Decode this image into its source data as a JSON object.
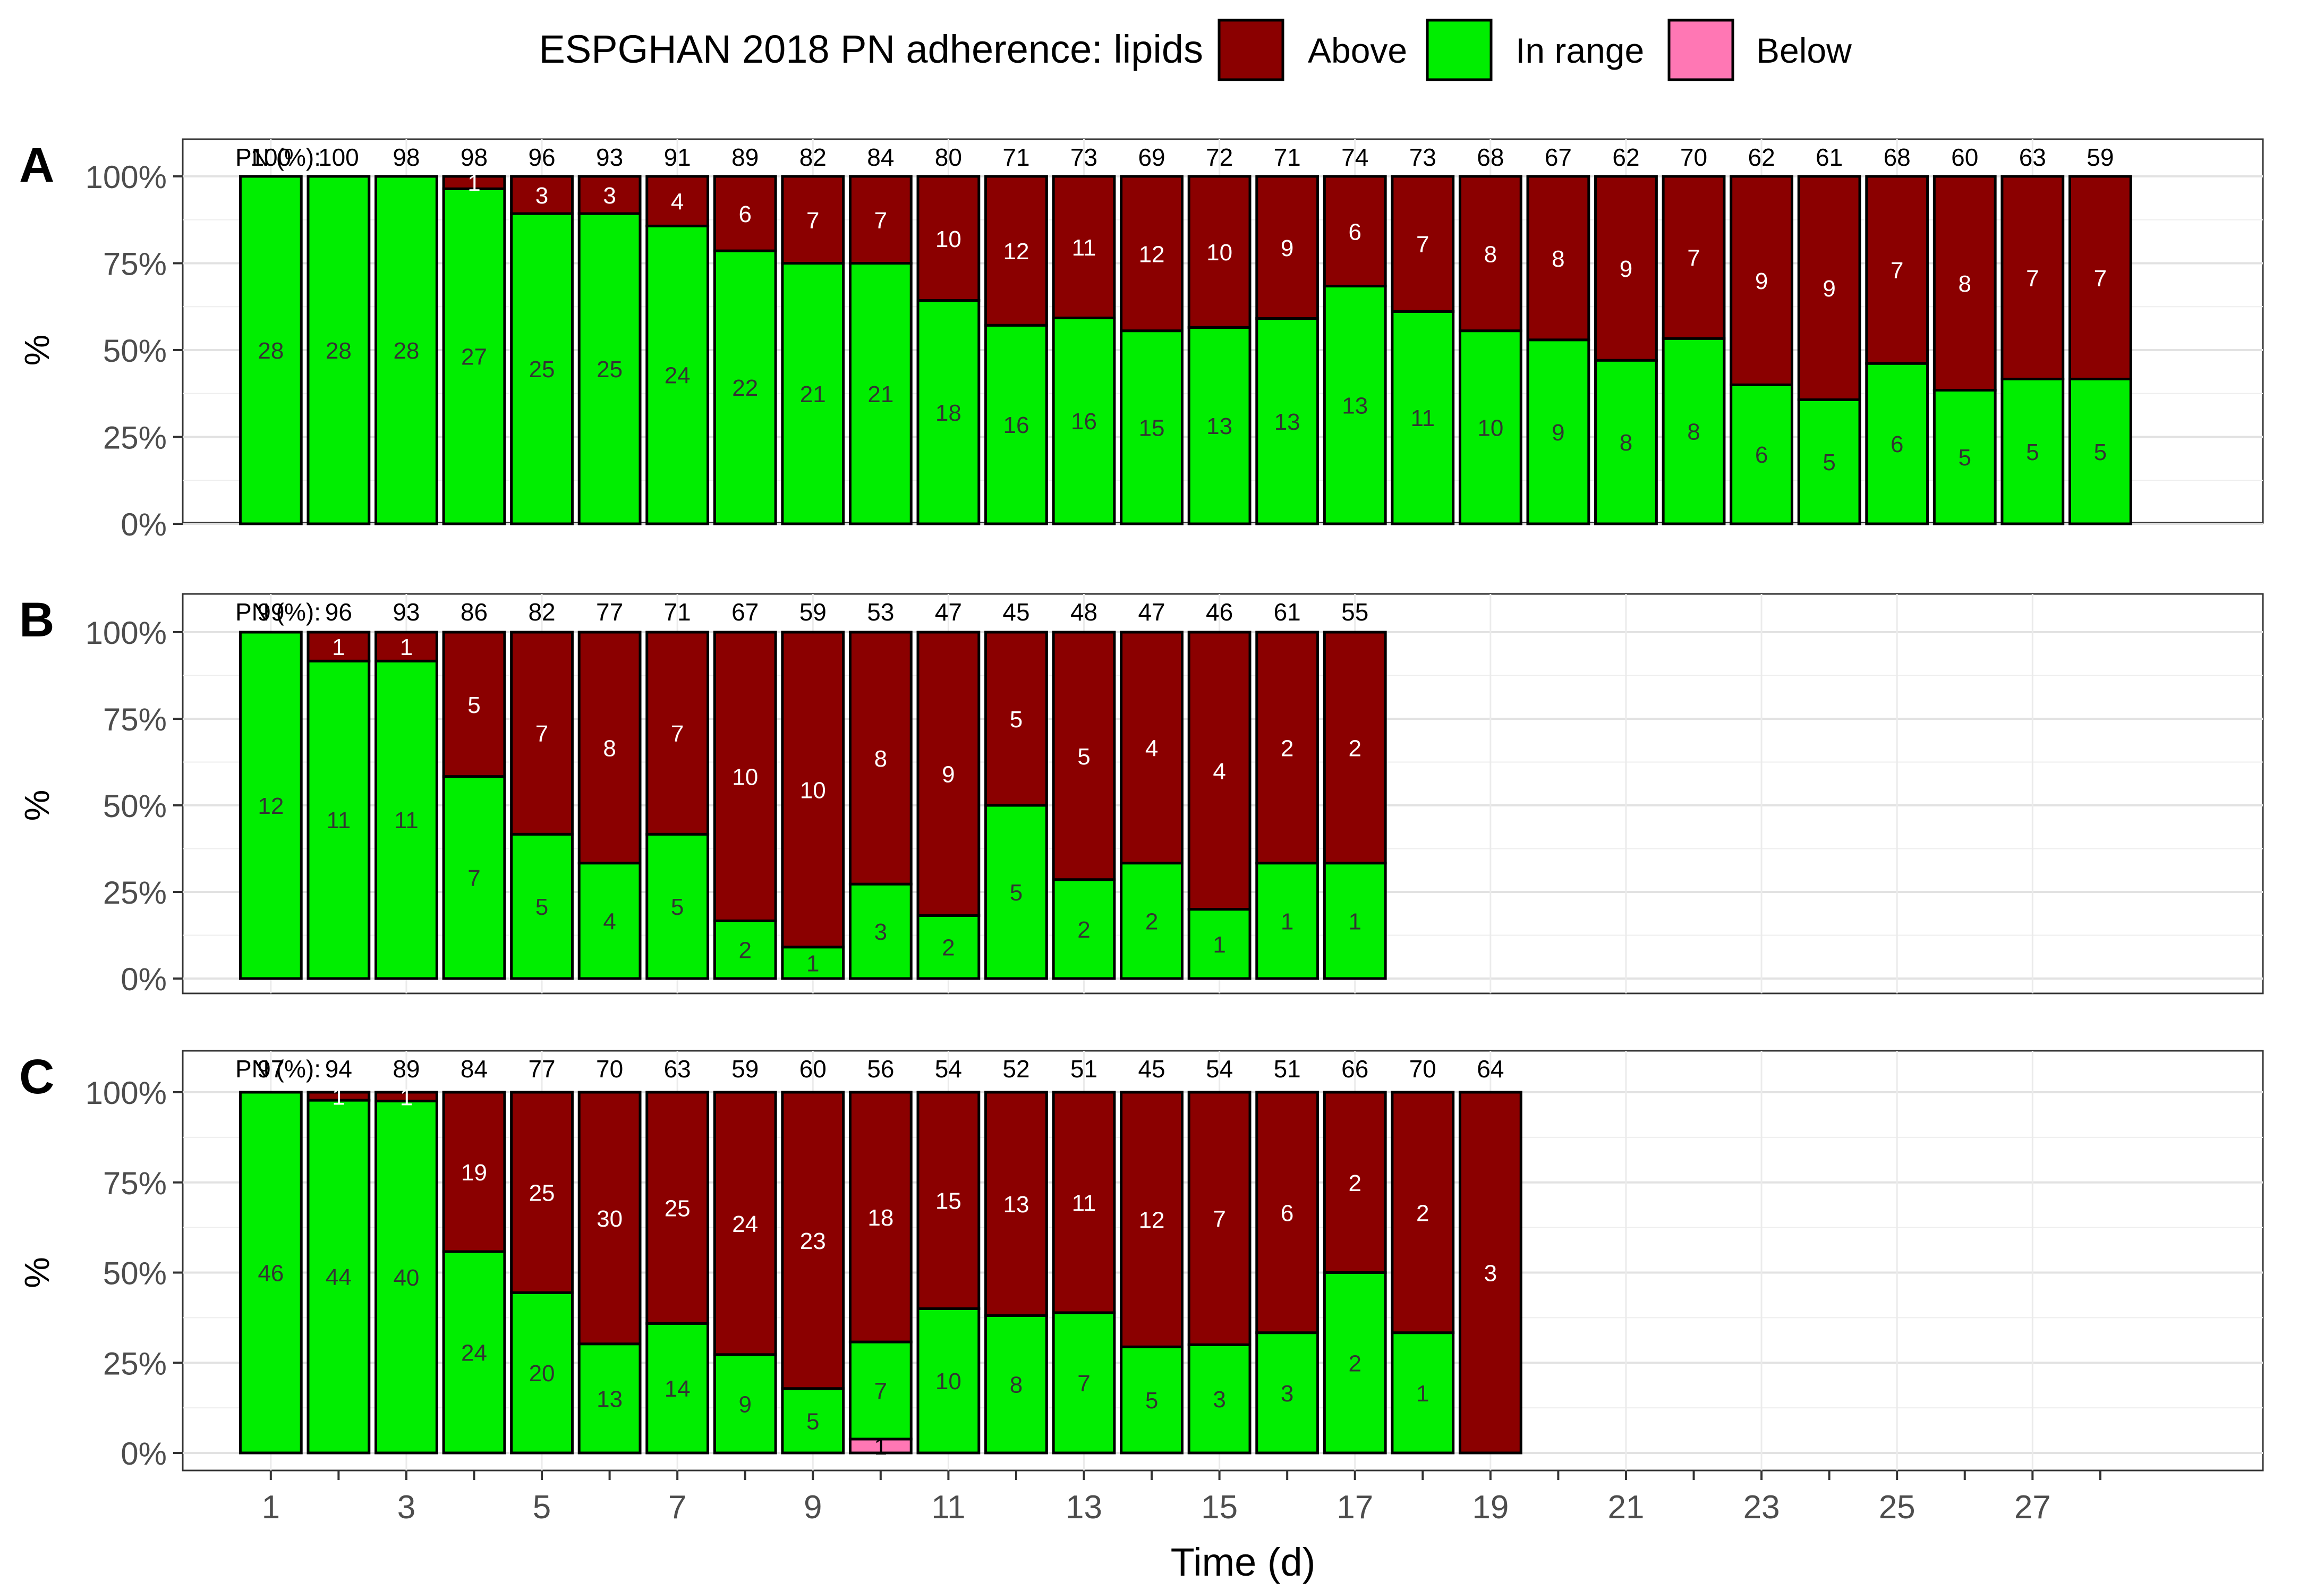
{
  "chart_data": {
    "type": "bar",
    "stacked": true,
    "legend": {
      "title": "ESPGHAN 2018 PN adherence: lipids",
      "position": "top",
      "entries": [
        {
          "key": "above",
          "label": "Above",
          "color": "#8B0000"
        },
        {
          "key": "in_range",
          "label": "In range",
          "color": "#00EE00"
        },
        {
          "key": "below",
          "label": "Below",
          "color": "#FF77B4"
        }
      ]
    },
    "xlabel": "Time (d)",
    "ylabel": "%",
    "x_range": [
      1,
      28
    ],
    "x_ticks": [
      1,
      3,
      5,
      7,
      9,
      11,
      13,
      15,
      17,
      19,
      21,
      23,
      25,
      27
    ],
    "y_ticks": [
      "0%",
      "25%",
      "50%",
      "75%",
      "100%"
    ],
    "pn_row_label": "PN (%):",
    "panels": [
      {
        "id": "A",
        "days": [
          1,
          2,
          3,
          4,
          5,
          6,
          7,
          8,
          9,
          10,
          11,
          12,
          13,
          14,
          15,
          16,
          17,
          18,
          19,
          20,
          21,
          22,
          23,
          24,
          25,
          26,
          27,
          28
        ],
        "pn": [
          100,
          100,
          98,
          98,
          96,
          93,
          91,
          89,
          82,
          84,
          80,
          71,
          73,
          69,
          72,
          71,
          74,
          73,
          68,
          67,
          62,
          70,
          62,
          61,
          68,
          60,
          63,
          59
        ],
        "in_range": [
          28,
          28,
          28,
          27,
          25,
          25,
          24,
          22,
          21,
          21,
          18,
          16,
          16,
          15,
          13,
          13,
          13,
          11,
          10,
          9,
          8,
          8,
          6,
          5,
          6,
          5,
          5,
          5
        ],
        "above": [
          0,
          0,
          0,
          1,
          3,
          3,
          4,
          6,
          7,
          7,
          10,
          12,
          11,
          12,
          10,
          9,
          6,
          7,
          8,
          8,
          9,
          7,
          9,
          9,
          7,
          8,
          7,
          7
        ],
        "below": [
          0,
          0,
          0,
          0,
          0,
          0,
          0,
          0,
          0,
          0,
          0,
          0,
          0,
          0,
          0,
          0,
          0,
          0,
          0,
          0,
          0,
          0,
          0,
          0,
          0,
          0,
          0,
          0
        ]
      },
      {
        "id": "B",
        "days": [
          1,
          2,
          3,
          4,
          5,
          6,
          7,
          8,
          9,
          10,
          11,
          12,
          13,
          14,
          15,
          16,
          17
        ],
        "pn": [
          99,
          96,
          93,
          86,
          82,
          77,
          71,
          67,
          59,
          53,
          47,
          45,
          48,
          47,
          46,
          61,
          55
        ],
        "in_range": [
          12,
          11,
          11,
          7,
          5,
          4,
          5,
          2,
          1,
          3,
          2,
          5,
          2,
          2,
          1,
          1,
          1
        ],
        "above": [
          0,
          1,
          1,
          5,
          7,
          8,
          7,
          10,
          10,
          8,
          9,
          5,
          5,
          4,
          4,
          2,
          2
        ],
        "below": [
          0,
          0,
          0,
          0,
          0,
          0,
          0,
          0,
          0,
          0,
          0,
          0,
          0,
          0,
          0,
          0,
          0
        ]
      },
      {
        "id": "C",
        "days": [
          1,
          2,
          3,
          4,
          5,
          6,
          7,
          8,
          9,
          10,
          11,
          12,
          13,
          14,
          15,
          16,
          17,
          18,
          19
        ],
        "pn": [
          97,
          94,
          89,
          84,
          77,
          70,
          63,
          59,
          60,
          56,
          54,
          52,
          51,
          45,
          54,
          51,
          66,
          70,
          64
        ],
        "in_range": [
          46,
          44,
          40,
          24,
          20,
          13,
          14,
          9,
          5,
          7,
          10,
          8,
          7,
          5,
          3,
          3,
          2,
          1,
          0
        ],
        "above": [
          0,
          1,
          1,
          19,
          25,
          30,
          25,
          24,
          23,
          18,
          15,
          13,
          11,
          12,
          7,
          6,
          2,
          2,
          3
        ],
        "below": [
          0,
          0,
          0,
          0,
          0,
          0,
          0,
          0,
          0,
          1,
          0,
          0,
          0,
          0,
          0,
          0,
          0,
          0,
          0
        ]
      }
    ]
  }
}
